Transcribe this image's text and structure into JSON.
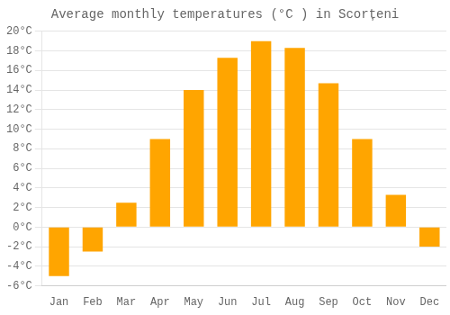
{
  "chart_data": {
    "type": "bar",
    "title": "Average monthly temperatures (°C ) in Scorțeni",
    "categories": [
      "Jan",
      "Feb",
      "Mar",
      "Apr",
      "May",
      "Jun",
      "Jul",
      "Aug",
      "Sep",
      "Oct",
      "Nov",
      "Dec"
    ],
    "values": [
      -5.0,
      -2.5,
      2.5,
      9.0,
      14.0,
      17.3,
      19.0,
      18.3,
      14.7,
      9.0,
      3.3,
      -2.0
    ],
    "color": "#FFA500",
    "ylim": [
      -6,
      20
    ],
    "yticks": [
      {
        "value": -6,
        "label": "-6°C"
      },
      {
        "value": -4,
        "label": "-4°C"
      },
      {
        "value": -2,
        "label": "-2°C"
      },
      {
        "value": 0,
        "label": "0°C"
      },
      {
        "value": 2,
        "label": "2°C"
      },
      {
        "value": 4,
        "label": "4°C"
      },
      {
        "value": 6,
        "label": "6°C"
      },
      {
        "value": 8,
        "label": "8°C"
      },
      {
        "value": 10,
        "label": "10°C"
      },
      {
        "value": 12,
        "label": "12°C"
      },
      {
        "value": 14,
        "label": "14°C"
      },
      {
        "value": 16,
        "label": "16°C"
      },
      {
        "value": 18,
        "label": "18°C"
      },
      {
        "value": 20,
        "label": "20°C"
      }
    ],
    "grid": true
  }
}
